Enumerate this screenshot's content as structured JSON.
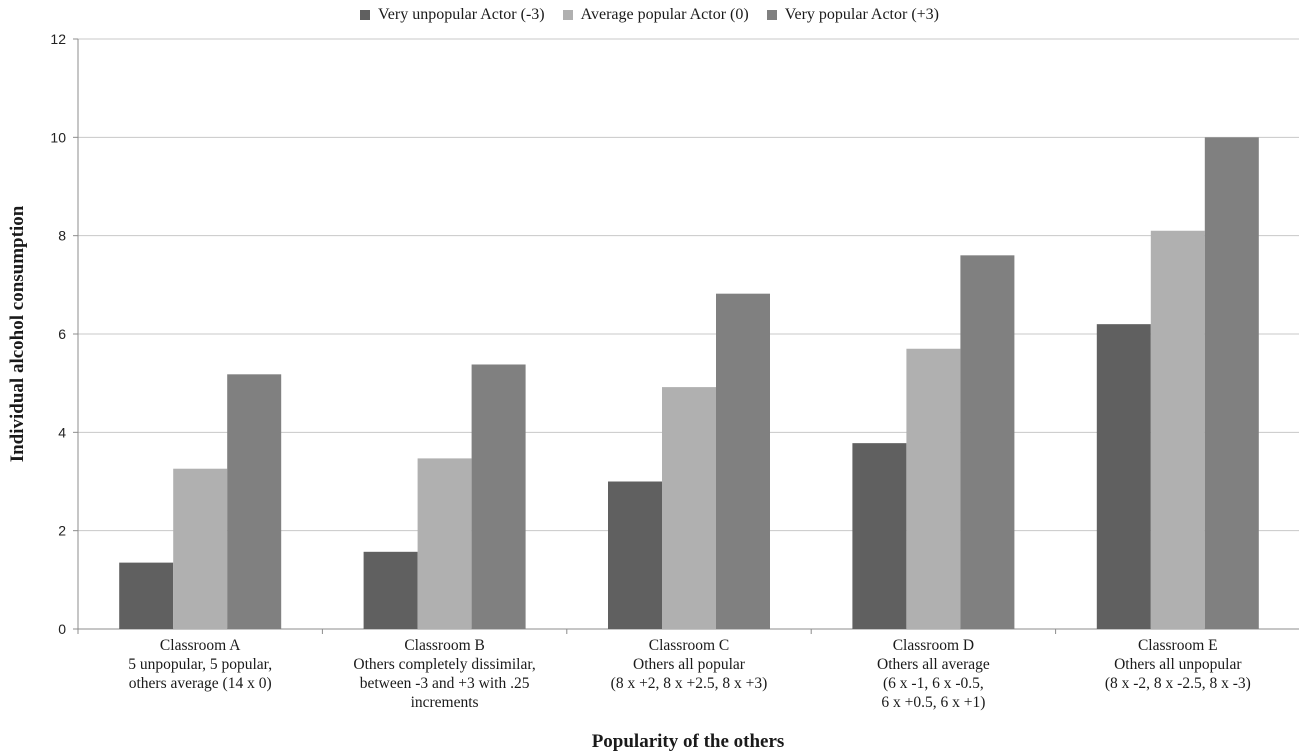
{
  "chart_data": {
    "type": "bar",
    "title": "",
    "xlabel": "Popularity of the others",
    "ylabel": "Individual alcohol consumption",
    "ylim": [
      0,
      12
    ],
    "yticks": [
      "0",
      "2",
      "4",
      "6",
      "8",
      "10",
      "12"
    ],
    "grid": true,
    "legend_position": "top",
    "categories": [
      {
        "lines": [
          "Classroom A",
          "5 unpopular, 5 popular,",
          "others average (14 x 0)"
        ]
      },
      {
        "lines": [
          "Classroom B",
          "Others completely dissimilar,",
          "between -3 and +3 with .25",
          "increments"
        ]
      },
      {
        "lines": [
          "Classroom C",
          "Others all popular",
          "(8 x +2, 8 x +2.5, 8 x +3)"
        ]
      },
      {
        "lines": [
          "Classroom D",
          "Others all average",
          "(6 x -1, 6 x -0.5,",
          "6 x +0.5, 6 x +1)"
        ]
      },
      {
        "lines": [
          "Classroom E",
          "Others all unpopular",
          "(8 x -2, 8 x -2.5, 8 x -3)"
        ]
      }
    ],
    "series": [
      {
        "name": "Very unpopular Actor (-3)",
        "color": "#606060",
        "values": [
          1.35,
          1.57,
          3.0,
          3.78,
          6.2
        ]
      },
      {
        "name": "Average popular Actor (0)",
        "color": "#b0b0b0",
        "values": [
          3.26,
          3.47,
          4.92,
          5.7,
          8.1
        ]
      },
      {
        "name": "Very popular Actor (+3)",
        "color": "#808080",
        "values": [
          5.18,
          5.38,
          6.82,
          7.6,
          10.0
        ]
      }
    ]
  }
}
